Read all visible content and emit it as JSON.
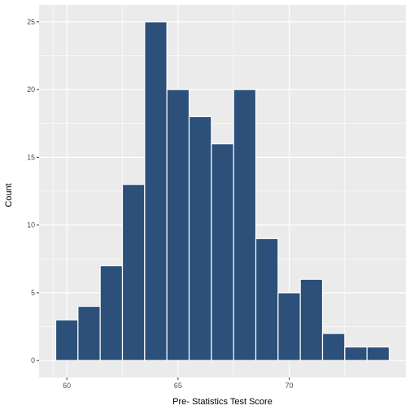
{
  "chart_data": {
    "type": "bar",
    "xlabel": "Pre- Statistics Test Score",
    "ylabel": "Count",
    "bin_width": 1,
    "x_tick_values": [
      60,
      65,
      70
    ],
    "x_tick_labels": [
      "60",
      "65",
      "70"
    ],
    "y_tick_values": [
      0,
      5,
      10,
      15,
      20,
      25
    ],
    "y_tick_labels": [
      "0",
      "5",
      "10",
      "15",
      "20",
      "25"
    ],
    "xlim": [
      58.75,
      75.25
    ],
    "ylim": [
      -1.25,
      26.25
    ],
    "grid": true,
    "bins": [
      {
        "x": 60,
        "count": 3
      },
      {
        "x": 61,
        "count": 4
      },
      {
        "x": 62,
        "count": 7
      },
      {
        "x": 63,
        "count": 13
      },
      {
        "x": 64,
        "count": 25
      },
      {
        "x": 65,
        "count": 20
      },
      {
        "x": 66,
        "count": 18
      },
      {
        "x": 67,
        "count": 16
      },
      {
        "x": 68,
        "count": 20
      },
      {
        "x": 69,
        "count": 9
      },
      {
        "x": 70,
        "count": 5
      },
      {
        "x": 71,
        "count": 6
      },
      {
        "x": 72,
        "count": 2
      },
      {
        "x": 73,
        "count": 1
      },
      {
        "x": 74,
        "count": 1
      }
    ],
    "colors": {
      "bar_fill": "#2c5079",
      "bar_outline": "#ffffff",
      "panel_background": "#ebebeb",
      "grid_major": "#ffffff",
      "tick_text": "#4d4d4d"
    }
  }
}
